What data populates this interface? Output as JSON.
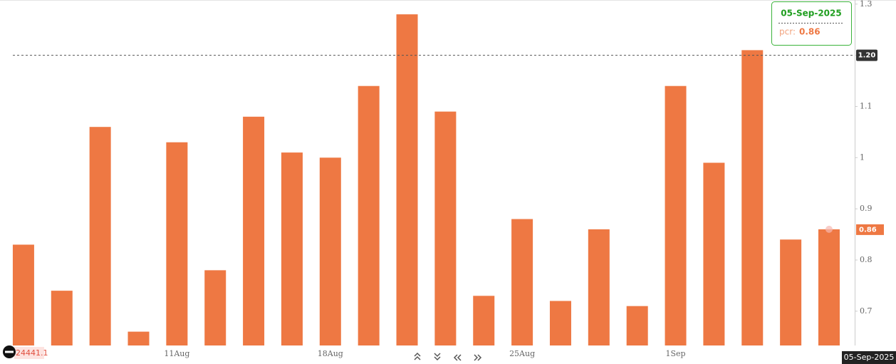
{
  "chart_data": {
    "type": "bar",
    "categories": [
      null,
      null,
      null,
      null,
      "11Aug",
      null,
      null,
      null,
      "18Aug",
      null,
      null,
      null,
      null,
      "25Aug",
      null,
      null,
      null,
      "1Sep",
      null,
      null,
      null,
      null
    ],
    "series": [
      {
        "name": "pcr",
        "color": "#ee7843",
        "values": [
          0.83,
          0.74,
          1.06,
          0.66,
          1.03,
          0.78,
          1.08,
          1.01,
          1.0,
          1.14,
          1.28,
          1.09,
          0.73,
          0.88,
          0.72,
          0.86,
          0.71,
          1.14,
          0.99,
          1.21,
          0.84,
          0.86
        ]
      }
    ],
    "ylim": [
      0.633,
      1.308
    ],
    "yticks": [
      0.7,
      0.8,
      0.9,
      1,
      1.1,
      1.2,
      1.3
    ],
    "crosshair": {
      "y": {
        "value": 1.2,
        "label": "1.20"
      },
      "x_label": "05-Sep-2025"
    },
    "last_value": {
      "value": 0.86,
      "label": "0.86"
    },
    "tooltip": {
      "title": "05-Sep-2025",
      "label": "pcr:",
      "value": "0.86"
    },
    "footer_value": "24441.1"
  }
}
